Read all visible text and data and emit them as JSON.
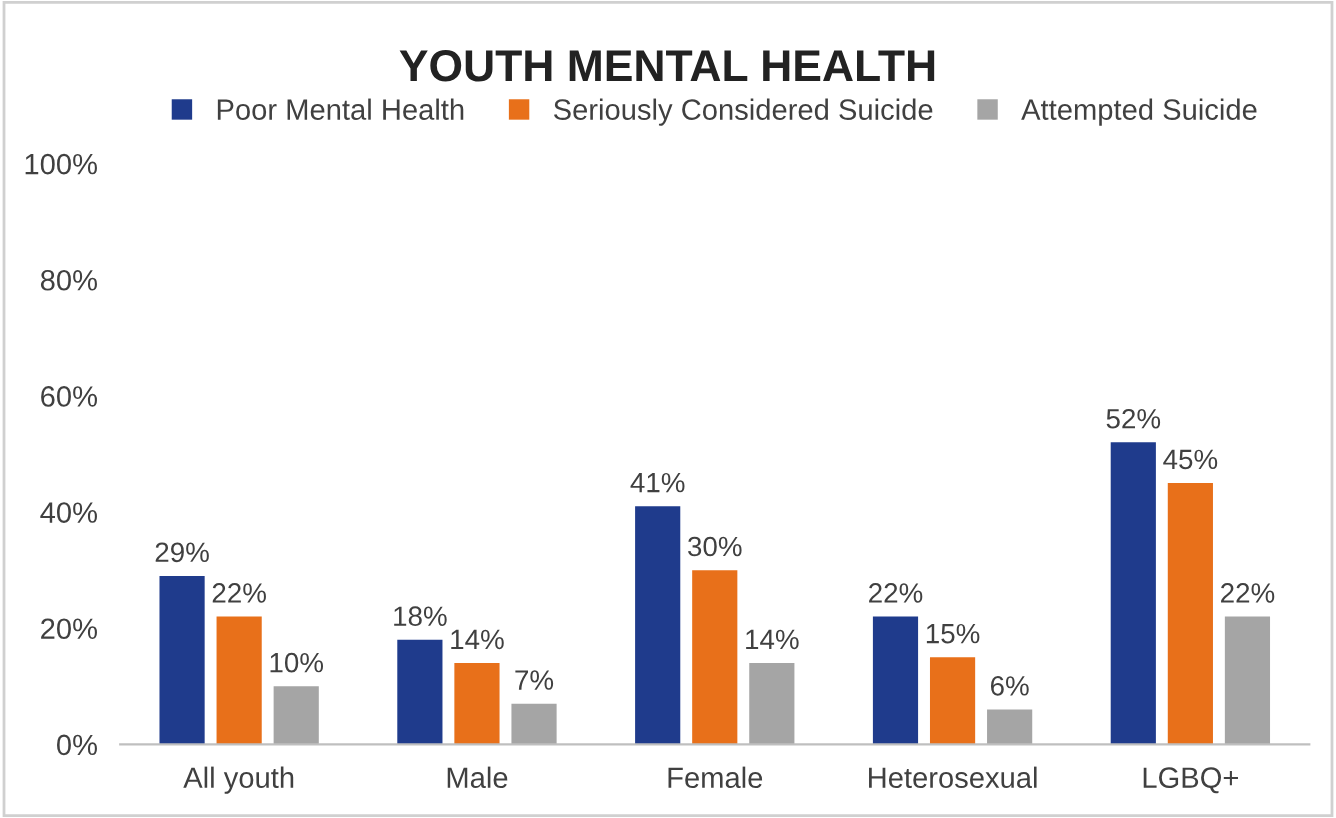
{
  "chart_data": {
    "type": "bar",
    "title": "YOUTH MENTAL HEALTH",
    "categories": [
      "All youth",
      "Male",
      "Female",
      "Heterosexual",
      "LGBQ+"
    ],
    "series": [
      {
        "name": "Poor Mental Health",
        "color": "#1f3b8c",
        "values": [
          29,
          18,
          41,
          22,
          52
        ],
        "value_labels": [
          "29%",
          "18%",
          "41%",
          "22%",
          "52%"
        ]
      },
      {
        "name": "Seriously Considered Suicide",
        "color": "#e8701a",
        "values": [
          22,
          14,
          30,
          15,
          45
        ],
        "value_labels": [
          "22%",
          "14%",
          "30%",
          "15%",
          "45%"
        ]
      },
      {
        "name": "Attempted Suicide",
        "color": "#a5a5a5",
        "values": [
          10,
          7,
          14,
          6,
          22
        ],
        "value_labels": [
          "10%",
          "7%",
          "14%",
          "6%",
          "22%"
        ]
      }
    ],
    "ylim": [
      0,
      100
    ],
    "yticks": [
      {
        "value": 0,
        "label": "0%"
      },
      {
        "value": 20,
        "label": "20%"
      },
      {
        "value": 40,
        "label": "40%"
      },
      {
        "value": 60,
        "label": "60%"
      },
      {
        "value": 80,
        "label": "80%"
      },
      {
        "value": 100,
        "label": "100%"
      }
    ],
    "grid": false,
    "legend": "top"
  }
}
